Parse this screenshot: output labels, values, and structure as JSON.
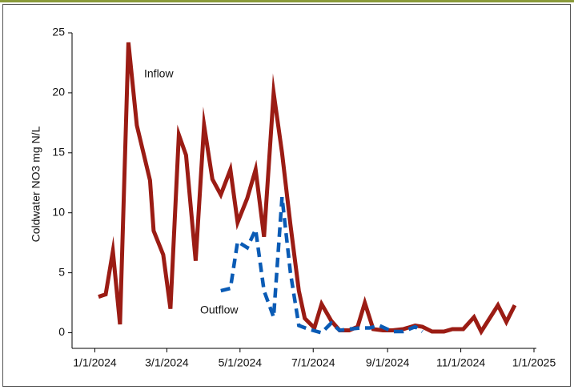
{
  "chart_data": {
    "type": "line",
    "y_label": "Coldwater NO3 mg N/L",
    "annotations": [
      "Inflow",
      "Outflow"
    ],
    "xlim": [
      "2023-12-13",
      "2025-01-03"
    ],
    "xticks": [
      {
        "value": "2024-01-01",
        "label": "1/1/2024"
      },
      {
        "value": "2024-03-01",
        "label": "3/1/2024"
      },
      {
        "value": "2024-05-01",
        "label": "5/1/2024"
      },
      {
        "value": "2024-07-01",
        "label": "7/1/2024"
      },
      {
        "value": "2024-09-01",
        "label": "9/1/2024"
      },
      {
        "value": "2024-11-01",
        "label": "11/1/2024"
      },
      {
        "value": "2025-01-01",
        "label": "1/1/2025"
      }
    ],
    "ylim": [
      -1.3,
      25
    ],
    "yticks": [
      0,
      5,
      10,
      15,
      20,
      25
    ],
    "series": [
      {
        "name": "Inflow",
        "color": "#9b1c14",
        "dash": false,
        "x": [
          "2024-01-04",
          "2024-01-10",
          "2024-01-16",
          "2024-01-22",
          "2024-01-29",
          "2024-02-05",
          "2024-02-16",
          "2024-02-19",
          "2024-02-27",
          "2024-03-04",
          "2024-03-11",
          "2024-03-17",
          "2024-03-25",
          "2024-04-01",
          "2024-04-08",
          "2024-04-15",
          "2024-04-23",
          "2024-04-29",
          "2024-05-07",
          "2024-05-14",
          "2024-05-21",
          "2024-05-29",
          "2024-06-05",
          "2024-06-12",
          "2024-06-19",
          "2024-06-24",
          "2024-07-02",
          "2024-07-08",
          "2024-07-16",
          "2024-07-23",
          "2024-07-31",
          "2024-08-07",
          "2024-08-13",
          "2024-08-20",
          "2024-08-28",
          "2024-09-05",
          "2024-09-14",
          "2024-09-24",
          "2024-09-30",
          "2024-10-08",
          "2024-10-18",
          "2024-10-25",
          "2024-11-03",
          "2024-11-12",
          "2024-11-18",
          "2024-11-25",
          "2024-12-02",
          "2024-12-09",
          "2024-12-16"
        ],
        "values": [
          3.0,
          3.2,
          6.8,
          0.7,
          24.2,
          17.3,
          12.7,
          8.5,
          6.5,
          2.0,
          16.5,
          14.8,
          6.0,
          17.3,
          12.8,
          11.5,
          13.6,
          9.2,
          11.2,
          13.6,
          8.0,
          20.0,
          15.0,
          9.0,
          3.5,
          1.2,
          0.4,
          2.4,
          1.0,
          0.2,
          0.2,
          0.5,
          2.5,
          0.3,
          0.2,
          0.2,
          0.3,
          0.6,
          0.5,
          0.1,
          0.1,
          0.3,
          0.3,
          1.3,
          0.1,
          1.2,
          2.3,
          0.9,
          2.3
        ]
      },
      {
        "name": "Outflow",
        "color": "#0a5bb5",
        "dash": true,
        "x": [
          "2024-04-15",
          "2024-04-23",
          "2024-04-29",
          "2024-05-07",
          "2024-05-14",
          "2024-05-21",
          "2024-05-29",
          "2024-06-05",
          "2024-06-12",
          "2024-06-19",
          "2024-06-27",
          "2024-07-08",
          "2024-07-16",
          "2024-07-23",
          "2024-07-31",
          "2024-08-09",
          "2024-08-17",
          "2024-08-25",
          "2024-09-05",
          "2024-09-14",
          "2024-09-24",
          "2024-09-30"
        ],
        "values": [
          3.5,
          3.7,
          7.6,
          7.1,
          8.6,
          3.5,
          1.3,
          11.3,
          5.0,
          0.6,
          0.3,
          0.0,
          0.8,
          0.2,
          0.3,
          0.4,
          0.4,
          0.6,
          0.1,
          0.1,
          0.5,
          0.1
        ]
      }
    ]
  }
}
